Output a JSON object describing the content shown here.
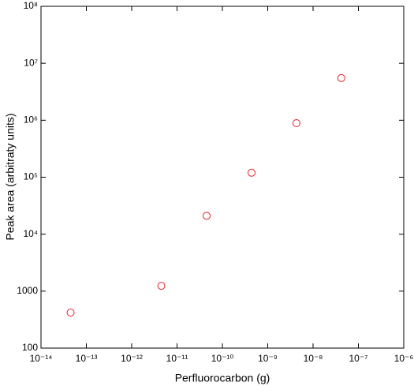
{
  "chart_data": {
    "type": "scatter",
    "x_label": "Perfluorocarbon (g)",
    "y_label": "Peak area (arbitraty units)",
    "xscale": "log",
    "yscale": "log",
    "xlim": [
      1e-14,
      1e-06
    ],
    "ylim": [
      100,
      100000000
    ],
    "xticks": [
      {
        "value": 1e-14,
        "label": "10⁻¹⁴"
      },
      {
        "value": 1e-13,
        "label": "10⁻¹³"
      },
      {
        "value": 1e-12,
        "label": "10⁻¹²"
      },
      {
        "value": 1e-11,
        "label": "10⁻¹¹"
      },
      {
        "value": 1e-10,
        "label": "10⁻¹⁰"
      },
      {
        "value": 1e-09,
        "label": "10⁻⁹"
      },
      {
        "value": 1e-08,
        "label": "10⁻⁸"
      },
      {
        "value": 1e-07,
        "label": "10⁻⁷"
      },
      {
        "value": 1e-06,
        "label": "10⁻⁶"
      }
    ],
    "yticks": [
      100,
      1000,
      {
        "value": 10000,
        "label": "10⁴"
      },
      {
        "value": 100000,
        "label": "10⁵"
      },
      {
        "value": 1000000,
        "label": "10⁶"
      },
      {
        "value": 10000000,
        "label": "10⁷"
      },
      {
        "value": 100000000,
        "label": "10⁸"
      }
    ],
    "color": "#e8202a",
    "x": [
      4.5e-14,
      4.5e-12,
      4.5e-11,
      4.4e-10,
      4.3e-09,
      4.2e-08
    ],
    "values": [
      420,
      1240,
      21000,
      120000,
      890000,
      5500000
    ]
  }
}
